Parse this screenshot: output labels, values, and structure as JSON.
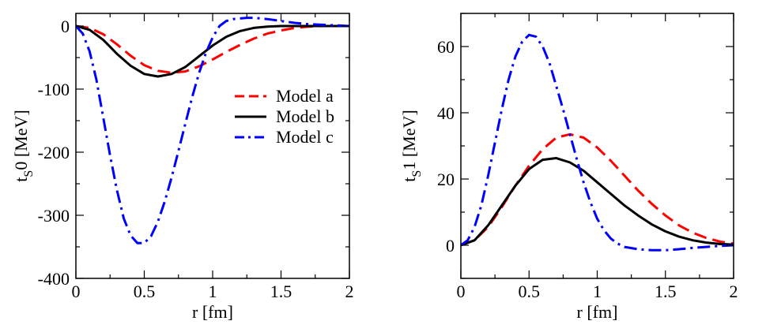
{
  "chart_data": [
    {
      "type": "line",
      "panel": "left",
      "xlabel": "r [fm]",
      "ylabel_main": "t",
      "ylabel_sub": "S",
      "ylabel_rest": "0 [MeV]",
      "xlim": [
        0,
        2
      ],
      "ylim": [
        -400,
        20
      ],
      "xticks": [
        0,
        0.5,
        1,
        1.5,
        2
      ],
      "xtick_labels": [
        "0",
        "0.5",
        "1",
        "1.5",
        "2"
      ],
      "yticks": [
        -400,
        -300,
        -200,
        -100,
        0
      ],
      "ytick_labels": [
        "-400",
        "-300",
        "-200",
        "-100",
        "0"
      ],
      "grid": false,
      "legend": {
        "placement": "center-right",
        "entries": [
          "Model a",
          "Model b",
          "Model c"
        ]
      },
      "series": [
        {
          "name": "Model a",
          "color": "#ff0000",
          "dash": "dashed",
          "x": [
            0,
            0.1,
            0.2,
            0.3,
            0.4,
            0.5,
            0.6,
            0.7,
            0.8,
            0.9,
            1.0,
            1.1,
            1.2,
            1.3,
            1.4,
            1.5,
            1.6,
            1.7,
            1.8,
            1.9,
            2.0
          ],
          "y": [
            0,
            -3,
            -13,
            -29,
            -47,
            -62,
            -71,
            -74,
            -72,
            -64,
            -53,
            -41,
            -30,
            -20,
            -12,
            -7,
            -3,
            -1,
            0,
            0,
            0
          ]
        },
        {
          "name": "Model b",
          "color": "#000000",
          "dash": "solid",
          "x": [
            0,
            0.1,
            0.2,
            0.3,
            0.4,
            0.5,
            0.6,
            0.7,
            0.8,
            0.9,
            1.0,
            1.1,
            1.2,
            1.3,
            1.4,
            1.5,
            1.6,
            1.7,
            1.8,
            1.9,
            2.0
          ],
          "y": [
            0,
            -6,
            -22,
            -44,
            -63,
            -76,
            -80,
            -76,
            -65,
            -48,
            -31,
            -17,
            -8,
            -3,
            -1,
            0,
            0,
            0,
            0,
            0,
            0
          ]
        },
        {
          "name": "Model c",
          "color": "#0000ff",
          "dash": "dashdot",
          "x": [
            0,
            0.05,
            0.1,
            0.15,
            0.2,
            0.25,
            0.3,
            0.35,
            0.4,
            0.45,
            0.5,
            0.55,
            0.6,
            0.65,
            0.7,
            0.75,
            0.8,
            0.85,
            0.9,
            0.95,
            1.0,
            1.05,
            1.1,
            1.15,
            1.2,
            1.25,
            1.3,
            1.35,
            1.4,
            1.5,
            1.6,
            1.7,
            1.8,
            1.9,
            2.0
          ],
          "y": [
            0,
            -12,
            -40,
            -85,
            -145,
            -205,
            -260,
            -305,
            -332,
            -344,
            -344,
            -333,
            -310,
            -278,
            -240,
            -198,
            -155,
            -113,
            -75,
            -43,
            -18,
            0,
            8,
            11,
            12,
            13,
            13,
            12,
            11,
            8,
            5,
            3,
            2,
            1,
            0
          ]
        }
      ]
    },
    {
      "type": "line",
      "panel": "right",
      "xlabel": "r [fm]",
      "ylabel_main": "t",
      "ylabel_sub": "S",
      "ylabel_rest": "1 [MeV]",
      "xlim": [
        0,
        2
      ],
      "ylim": [
        -10,
        70
      ],
      "xticks": [
        0,
        0.5,
        1,
        1.5,
        2
      ],
      "xtick_labels": [
        "0",
        "0.5",
        "1",
        "1.5",
        "2"
      ],
      "yticks": [
        0,
        20,
        40,
        60
      ],
      "ytick_labels": [
        "0",
        "20",
        "40",
        "60"
      ],
      "grid": false,
      "series": [
        {
          "name": "Model a",
          "color": "#ff0000",
          "dash": "dashed",
          "x": [
            0,
            0.1,
            0.2,
            0.3,
            0.4,
            0.5,
            0.6,
            0.7,
            0.8,
            0.9,
            1.0,
            1.1,
            1.2,
            1.3,
            1.4,
            1.5,
            1.6,
            1.7,
            1.8,
            1.9,
            2.0
          ],
          "y": [
            0,
            1.5,
            5.5,
            11.5,
            18,
            24,
            29,
            32.5,
            33.5,
            32.5,
            29.5,
            25.5,
            21,
            16.5,
            12.5,
            9,
            6,
            3.8,
            2.2,
            1.1,
            0.5
          ]
        },
        {
          "name": "Model b",
          "color": "#000000",
          "dash": "solid",
          "x": [
            0,
            0.1,
            0.2,
            0.3,
            0.4,
            0.5,
            0.6,
            0.7,
            0.8,
            0.9,
            1.0,
            1.1,
            1.2,
            1.3,
            1.4,
            1.5,
            1.6,
            1.7,
            1.8,
            1.9,
            2.0
          ],
          "y": [
            0,
            1.5,
            6,
            12,
            18,
            23,
            25.8,
            26.3,
            25,
            22.5,
            19,
            15.5,
            12,
            9,
            6.3,
            4.2,
            2.6,
            1.5,
            0.8,
            0.4,
            0.2
          ]
        },
        {
          "name": "Model c",
          "color": "#0000ff",
          "dash": "dashdot",
          "x": [
            0,
            0.05,
            0.1,
            0.15,
            0.2,
            0.25,
            0.3,
            0.35,
            0.4,
            0.45,
            0.5,
            0.55,
            0.6,
            0.65,
            0.7,
            0.75,
            0.8,
            0.85,
            0.9,
            0.95,
            1.0,
            1.05,
            1.1,
            1.15,
            1.2,
            1.3,
            1.4,
            1.5,
            1.6,
            1.7,
            1.8,
            1.9,
            2.0
          ],
          "y": [
            0,
            1.5,
            5.5,
            12,
            21,
            31,
            41,
            50,
            57,
            61.5,
            63.5,
            63,
            60,
            55,
            48,
            41,
            33.5,
            26,
            19,
            13,
            8,
            4.5,
            2,
            0.5,
            -0.5,
            -1.2,
            -1.5,
            -1.5,
            -1.2,
            -0.8,
            -0.5,
            -0.2,
            0
          ]
        }
      ]
    }
  ]
}
